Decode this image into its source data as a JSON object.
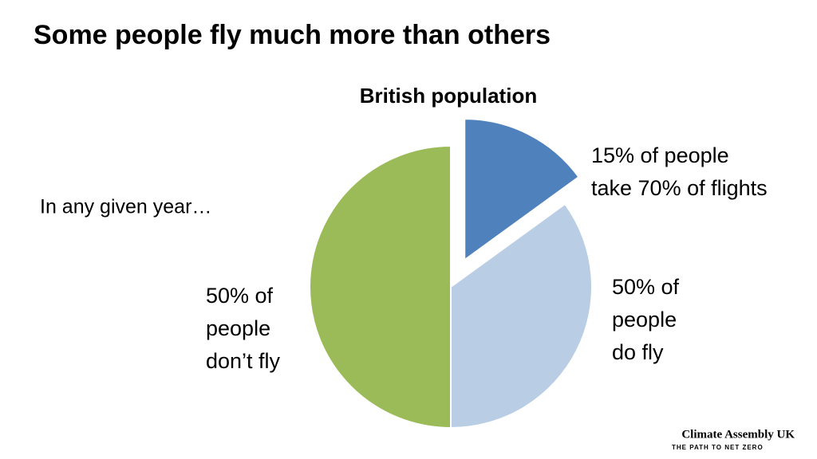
{
  "slide_title": "Some people fly much more than others",
  "note": "In any given year…",
  "chart_data": {
    "type": "pie",
    "title": "British population",
    "values": [
      15,
      35,
      50
    ],
    "colors": [
      "#4f81bd",
      "#b9cde5",
      "#9bbb59"
    ],
    "exploded": [
      true,
      false,
      false
    ],
    "annotations": [
      {
        "lines": [
          "15% of people",
          "take 70% of flights"
        ]
      },
      {
        "lines": [
          "50% of",
          "people",
          "do fly"
        ]
      },
      {
        "lines": [
          "50% of",
          "people",
          "don’t fly"
        ]
      }
    ]
  },
  "logo": {
    "name": "Climate Assembly UK",
    "tagline": "THE PATH TO NET ZERO"
  }
}
